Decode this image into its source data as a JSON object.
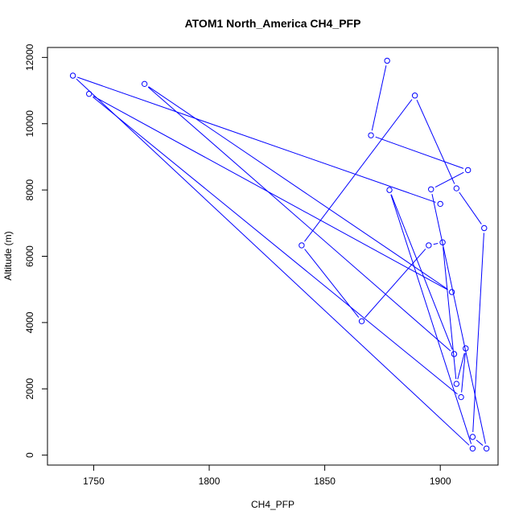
{
  "chart_data": {
    "type": "line",
    "title": "ATOM1 North_America CH4_PFP",
    "xlabel": "CH4_PFP",
    "ylabel": "Altitude (m)",
    "xlim": [
      1730,
      1925
    ],
    "ylim": [
      -300,
      12300
    ],
    "x_ticks": [
      1750,
      1800,
      1850,
      1900
    ],
    "y_ticks": [
      0,
      2000,
      4000,
      6000,
      8000,
      10000,
      12000
    ],
    "series_color": "#0000ff",
    "grid": false,
    "legend": "none",
    "series": [
      {
        "marker": "open-circle",
        "x": [
          1877,
          1870,
          1912,
          1896,
          1920,
          1914,
          1919,
          1907,
          1889,
          1840,
          1866,
          1895,
          1901,
          1907,
          1911,
          1909,
          1748,
          1905,
          1772,
          1906,
          1878,
          1914,
          1741,
          1900
        ],
        "y": [
          11900,
          9650,
          8600,
          8020,
          200,
          550,
          6850,
          8050,
          10850,
          6330,
          4040,
          6330,
          6420,
          2150,
          3220,
          1750,
          10900,
          4920,
          11200,
          3050,
          8000,
          200,
          11450,
          7580
        ]
      }
    ]
  }
}
